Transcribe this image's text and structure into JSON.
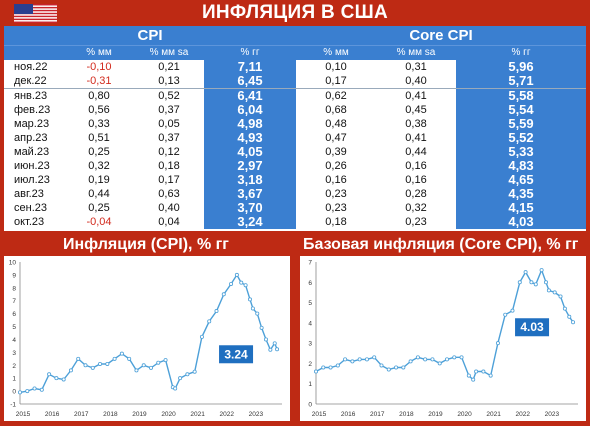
{
  "title": "ИНФЛЯЦИЯ В США",
  "colors": {
    "accent_blue": "#3a7fd0",
    "background_red": "#be2a14",
    "negative_red": "#d22b1e",
    "line": "#4da0d8",
    "callout": "#1f6fc0"
  },
  "table": {
    "cpi_header": "CPI",
    "core_header": "Core CPI",
    "col_mm": "% мм",
    "col_sa": "% мм sa",
    "col_yy": "% гг",
    "rows": [
      {
        "date": "ноя.22",
        "cpi_mm": "-0,10",
        "cpi_sa": "0,21",
        "cpi_yy": "7,11",
        "core_mm": "0,10",
        "core_sa": "0,31",
        "core_yy": "5,96"
      },
      {
        "date": "дек.22",
        "cpi_mm": "-0,31",
        "cpi_sa": "0,13",
        "cpi_yy": "6,45",
        "core_mm": "0,17",
        "core_sa": "0,40",
        "core_yy": "5,71"
      },
      {
        "date": "янв.23",
        "cpi_mm": "0,80",
        "cpi_sa": "0,52",
        "cpi_yy": "6,41",
        "core_mm": "0,62",
        "core_sa": "0,41",
        "core_yy": "5,58"
      },
      {
        "date": "фев.23",
        "cpi_mm": "0,56",
        "cpi_sa": "0,37",
        "cpi_yy": "6,04",
        "core_mm": "0,68",
        "core_sa": "0,45",
        "core_yy": "5,54"
      },
      {
        "date": "мар.23",
        "cpi_mm": "0,33",
        "cpi_sa": "0,05",
        "cpi_yy": "4,98",
        "core_mm": "0,48",
        "core_sa": "0,38",
        "core_yy": "5,59"
      },
      {
        "date": "апр.23",
        "cpi_mm": "0,51",
        "cpi_sa": "0,37",
        "cpi_yy": "4,93",
        "core_mm": "0,47",
        "core_sa": "0,41",
        "core_yy": "5,52"
      },
      {
        "date": "май.23",
        "cpi_mm": "0,25",
        "cpi_sa": "0,12",
        "cpi_yy": "4,05",
        "core_mm": "0,39",
        "core_sa": "0,44",
        "core_yy": "5,33"
      },
      {
        "date": "июн.23",
        "cpi_mm": "0,32",
        "cpi_sa": "0,18",
        "cpi_yy": "2,97",
        "core_mm": "0,26",
        "core_sa": "0,16",
        "core_yy": "4,83"
      },
      {
        "date": "июл.23",
        "cpi_mm": "0,19",
        "cpi_sa": "0,17",
        "cpi_yy": "3,18",
        "core_mm": "0,16",
        "core_sa": "0,16",
        "core_yy": "4,65"
      },
      {
        "date": "авг.23",
        "cpi_mm": "0,44",
        "cpi_sa": "0,63",
        "cpi_yy": "3,67",
        "core_mm": "0,23",
        "core_sa": "0,28",
        "core_yy": "4,35"
      },
      {
        "date": "сен.23",
        "cpi_mm": "0,25",
        "cpi_sa": "0,40",
        "cpi_yy": "3,70",
        "core_mm": "0,23",
        "core_sa": "0,32",
        "core_yy": "4,15"
      },
      {
        "date": "окт.23",
        "cpi_mm": "-0,04",
        "cpi_sa": "0,04",
        "cpi_yy": "3,24",
        "core_mm": "0,18",
        "core_sa": "0,23",
        "core_yy": "4,03"
      }
    ]
  },
  "chart_data": [
    {
      "type": "line",
      "title": "Инфляция (CPI), % гг",
      "xlabel": "",
      "ylabel": "",
      "xlim": [
        2015,
        2024
      ],
      "ylim": [
        -1,
        10
      ],
      "xticks": [
        2015,
        2016,
        2017,
        2018,
        2019,
        2020,
        2021,
        2022,
        2023
      ],
      "yticks": [
        -1,
        0,
        1,
        2,
        3,
        4,
        5,
        6,
        7,
        8,
        9,
        10
      ],
      "grid": false,
      "callout": "3.24",
      "x": [
        2015.0,
        2015.25,
        2015.5,
        2015.75,
        2016.0,
        2016.25,
        2016.5,
        2016.75,
        2017.0,
        2017.25,
        2017.5,
        2017.75,
        2018.0,
        2018.25,
        2018.5,
        2018.75,
        2019.0,
        2019.25,
        2019.5,
        2019.75,
        2020.0,
        2020.25,
        2020.33,
        2020.5,
        2020.75,
        2021.0,
        2021.25,
        2021.5,
        2021.75,
        2022.0,
        2022.25,
        2022.45,
        2022.6,
        2022.75,
        2022.9,
        2023.0,
        2023.15,
        2023.3,
        2023.45,
        2023.6,
        2023.75,
        2023.83
      ],
      "values": [
        -0.1,
        0.0,
        0.2,
        0.1,
        1.3,
        1.0,
        0.9,
        1.6,
        2.5,
        2.0,
        1.8,
        2.1,
        2.1,
        2.5,
        2.9,
        2.5,
        1.6,
        2.0,
        1.8,
        2.2,
        2.4,
        0.3,
        0.2,
        1.0,
        1.3,
        1.5,
        4.2,
        5.4,
        6.2,
        7.5,
        8.3,
        9.0,
        8.4,
        8.2,
        7.1,
        6.4,
        6.0,
        4.9,
        4.0,
        3.2,
        3.7,
        3.24
      ]
    },
    {
      "type": "line",
      "title": "Базовая инфляция (Core CPI), % гг",
      "xlabel": "",
      "ylabel": "",
      "xlim": [
        2015,
        2024
      ],
      "ylim": [
        0,
        7
      ],
      "xticks": [
        2015,
        2016,
        2017,
        2018,
        2019,
        2020,
        2021,
        2022,
        2023
      ],
      "yticks": [
        0,
        1,
        2,
        3,
        4,
        5,
        6,
        7
      ],
      "grid": false,
      "callout": "4.03",
      "x": [
        2015.0,
        2015.25,
        2015.5,
        2015.75,
        2016.0,
        2016.25,
        2016.5,
        2016.75,
        2017.0,
        2017.25,
        2017.5,
        2017.75,
        2018.0,
        2018.25,
        2018.5,
        2018.75,
        2019.0,
        2019.25,
        2019.5,
        2019.75,
        2020.0,
        2020.25,
        2020.4,
        2020.5,
        2020.75,
        2021.0,
        2021.25,
        2021.5,
        2021.75,
        2022.0,
        2022.2,
        2022.4,
        2022.55,
        2022.75,
        2022.9,
        2023.0,
        2023.2,
        2023.4,
        2023.55,
        2023.7,
        2023.83
      ],
      "values": [
        1.6,
        1.8,
        1.8,
        1.9,
        2.2,
        2.1,
        2.2,
        2.2,
        2.3,
        1.9,
        1.7,
        1.8,
        1.8,
        2.1,
        2.3,
        2.2,
        2.2,
        2.0,
        2.2,
        2.3,
        2.3,
        1.4,
        1.2,
        1.6,
        1.6,
        1.4,
        3.0,
        4.4,
        4.6,
        6.0,
        6.5,
        6.0,
        5.9,
        6.6,
        6.0,
        5.6,
        5.5,
        5.3,
        4.7,
        4.3,
        4.03
      ]
    }
  ]
}
